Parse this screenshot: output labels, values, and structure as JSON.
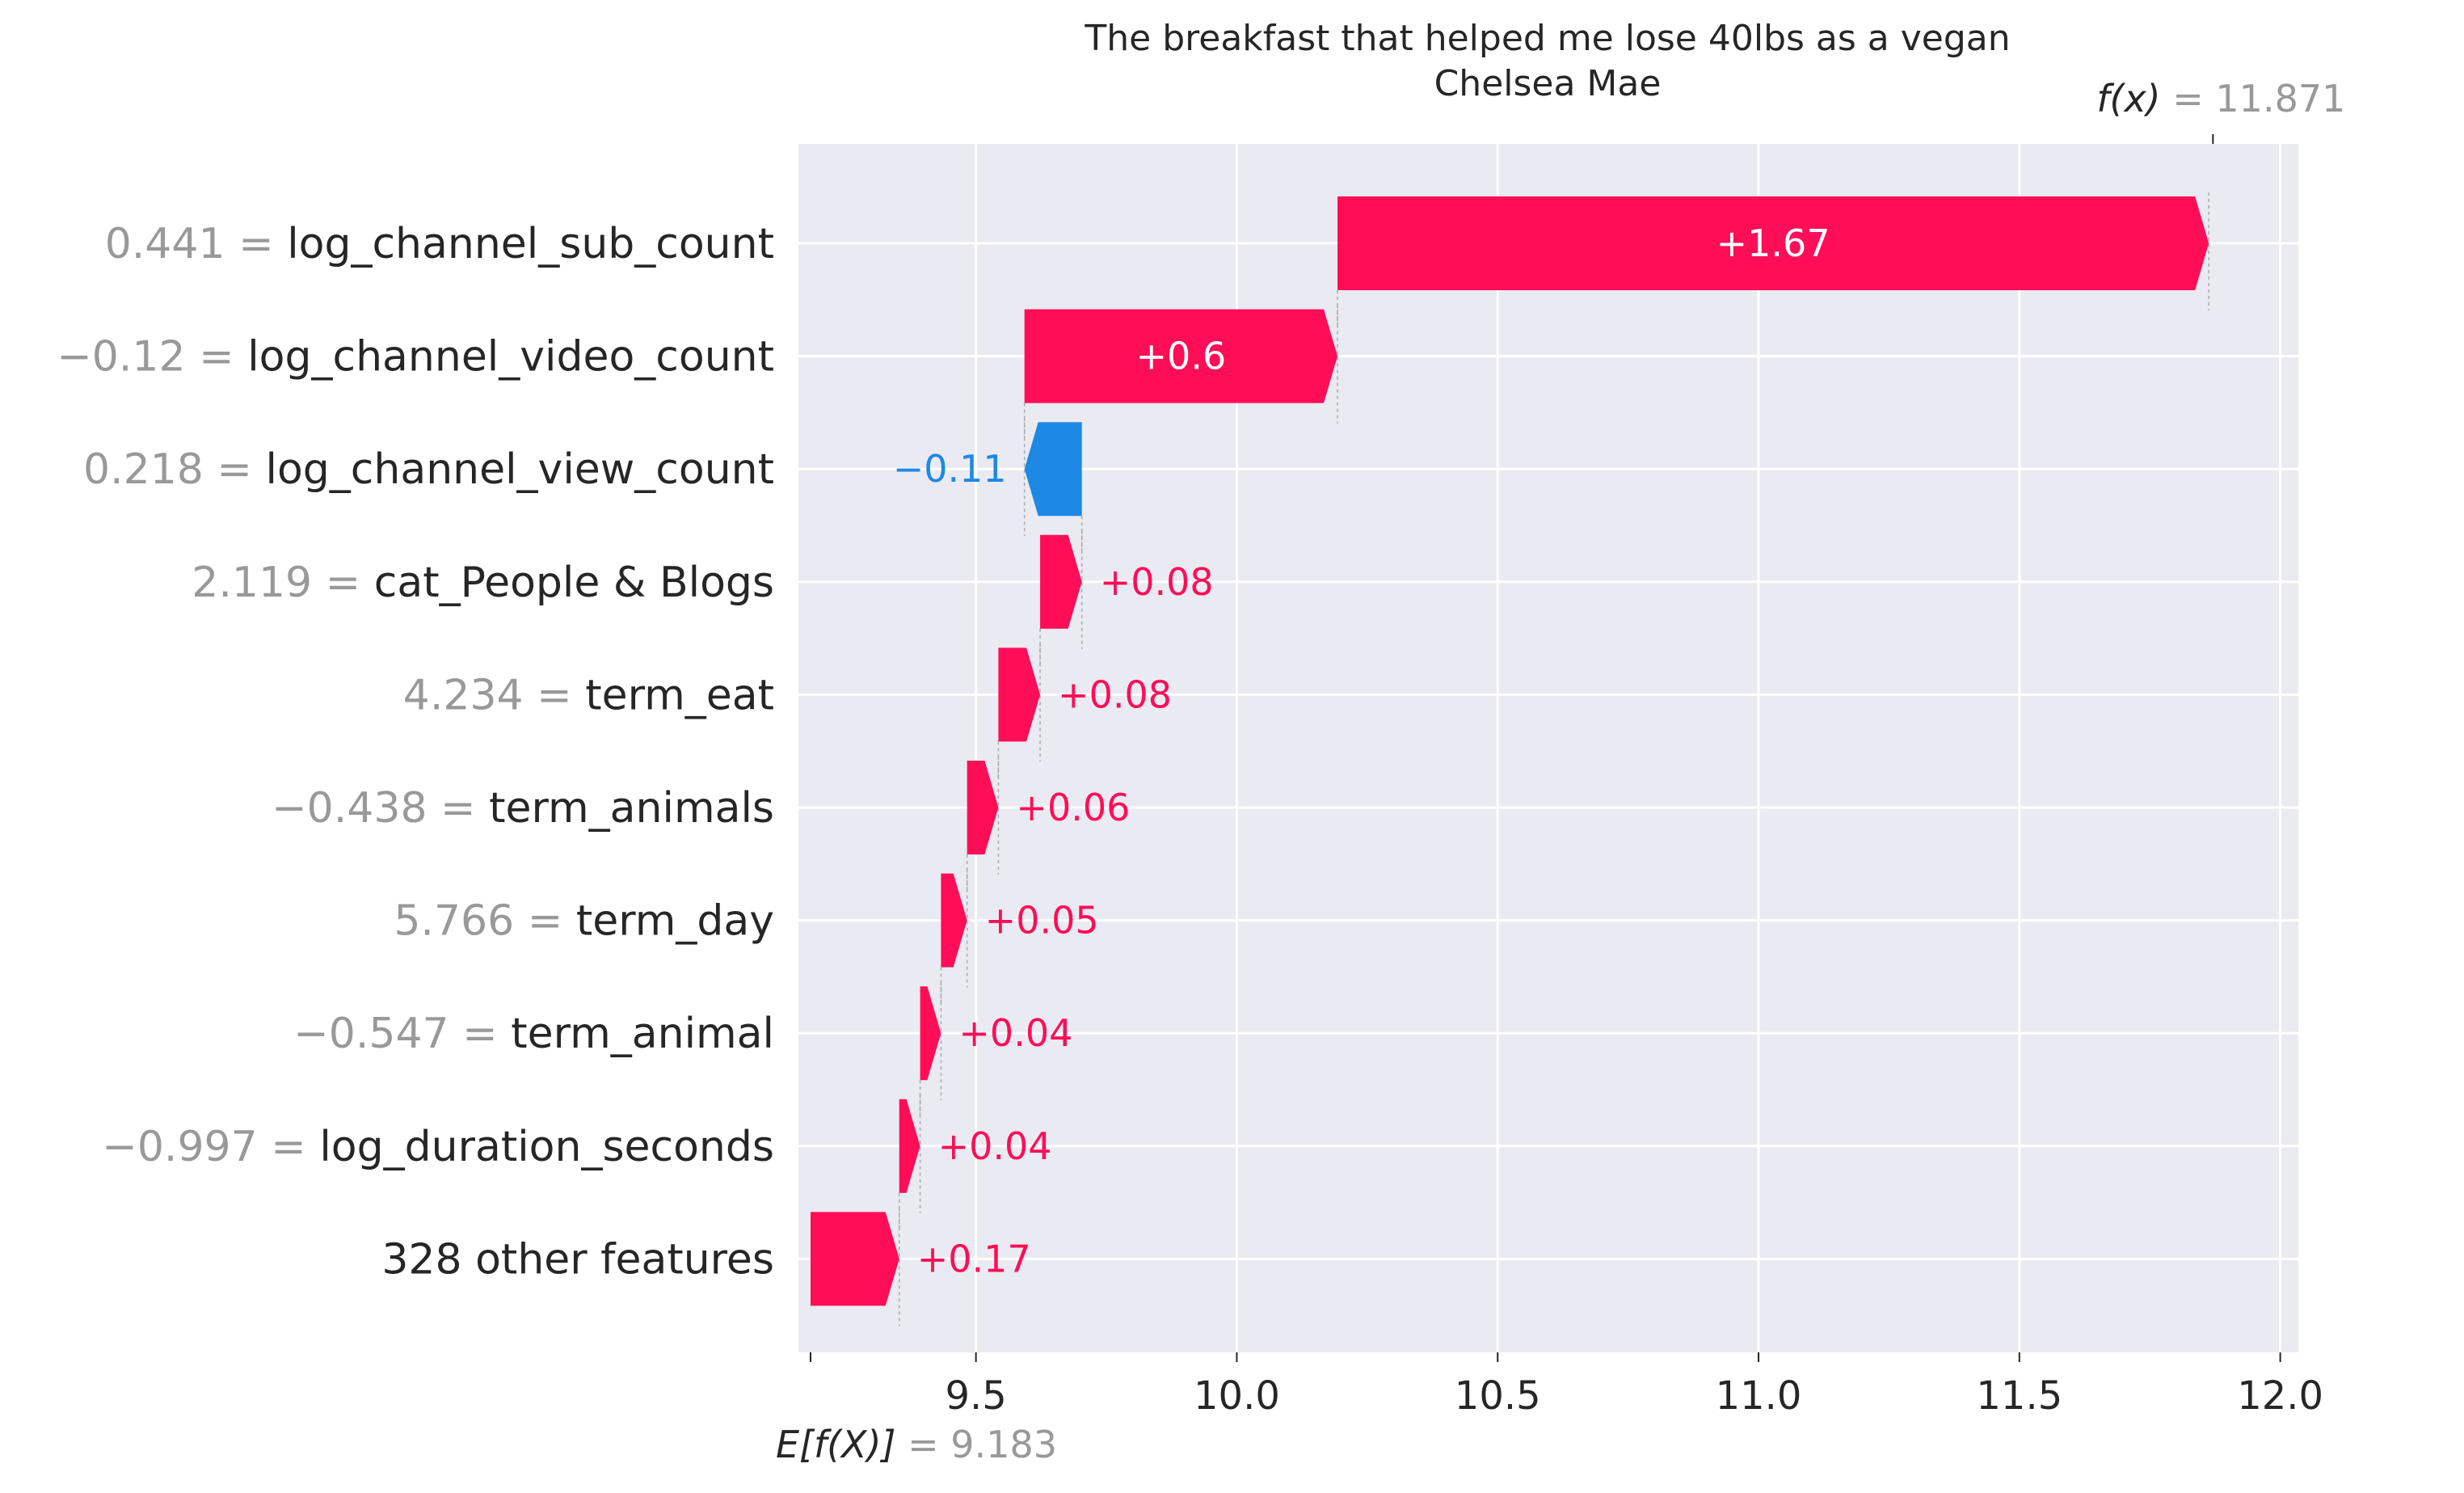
{
  "title": "The breakfast that helped me lose 40lbs as a vegan",
  "subtitle": "Chelsea Mae",
  "colors": {
    "positive": "#ff0d57",
    "negative": "#1e88e5",
    "background": "#eaeaf2",
    "grid": "#ffffff",
    "muted": "#999999"
  },
  "chart_data": {
    "type": "waterfall",
    "base_value": 9.183,
    "base_value_label": "E[f(X)]",
    "base_value_text": "= 9.183",
    "output_value": 11.871,
    "output_value_label": "f(x)",
    "output_value_text": "= 11.871",
    "xlim": [
      9.183,
      12.03
    ],
    "xticks": [
      9.5,
      10.0,
      10.5,
      11.0,
      11.5,
      12.0
    ],
    "xtick_labels": [
      "9.5",
      "10.0",
      "10.5",
      "11.0",
      "11.5",
      "12.0"
    ],
    "grid": true,
    "features": [
      {
        "value_text": "0.441 =",
        "name": "log_channel_sub_count",
        "contribution": 1.67,
        "label": "+1.67"
      },
      {
        "value_text": "−0.12 =",
        "name": "log_channel_video_count",
        "contribution": 0.6,
        "label": "+0.6"
      },
      {
        "value_text": "0.218 =",
        "name": "log_channel_view_count",
        "contribution": -0.11,
        "label": "−0.11"
      },
      {
        "value_text": "2.119 =",
        "name": "cat_People & Blogs",
        "contribution": 0.08,
        "label": "+0.08"
      },
      {
        "value_text": "4.234 =",
        "name": "term_eat",
        "contribution": 0.08,
        "label": "+0.08"
      },
      {
        "value_text": "−0.438 =",
        "name": "term_animals",
        "contribution": 0.06,
        "label": "+0.06"
      },
      {
        "value_text": "5.766 =",
        "name": "term_day",
        "contribution": 0.05,
        "label": "+0.05"
      },
      {
        "value_text": "−0.547 =",
        "name": "term_animal",
        "contribution": 0.04,
        "label": "+0.04"
      },
      {
        "value_text": "−0.997 =",
        "name": "log_duration_seconds",
        "contribution": 0.04,
        "label": "+0.04"
      },
      {
        "value_text": "",
        "name": "328 other features",
        "contribution": 0.17,
        "label": "+0.17"
      }
    ]
  }
}
